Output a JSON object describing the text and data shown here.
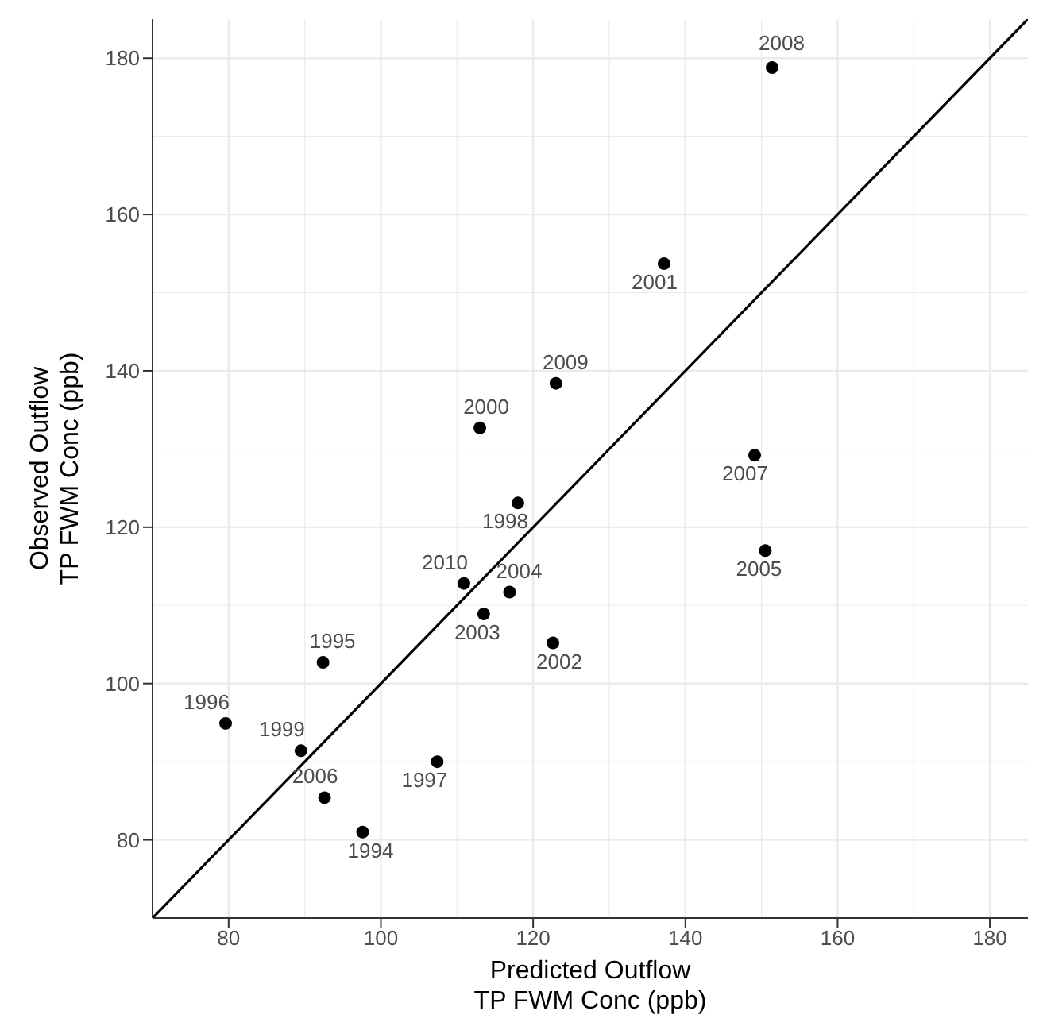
{
  "chart_data": {
    "type": "scatter",
    "xlabel": "Predicted Outflow\nTP FWM Conc (ppb)",
    "ylabel": "Observed Outflow\nTP FWM Conc (ppb)",
    "xlim": [
      70,
      185
    ],
    "ylim": [
      70,
      185
    ],
    "xticks": [
      80,
      100,
      120,
      140,
      160,
      180
    ],
    "yticks": [
      80,
      100,
      120,
      140,
      160,
      180
    ],
    "grid": true,
    "series": [
      {
        "marker": "circle",
        "color": "#000000",
        "x": [
          97.6,
          92.4,
          79.6,
          107.4,
          118.0,
          89.5,
          113.0,
          137.2,
          122.6,
          113.5,
          116.9,
          150.5,
          92.6,
          149.1,
          151.4,
          123.0,
          110.9
        ],
        "values": [
          81.0,
          102.7,
          94.9,
          90.0,
          123.1,
          91.4,
          132.7,
          153.7,
          105.2,
          108.9,
          111.7,
          117.0,
          85.4,
          129.2,
          178.8,
          138.4,
          112.8
        ]
      },
      {
        "type": "line",
        "marker": "none",
        "color": "#000000",
        "x": [
          70,
          185
        ],
        "values": [
          70,
          185
        ]
      }
    ],
    "annotations": [
      {
        "text": "1994",
        "x": 97.6,
        "y": 81.0
      },
      {
        "text": "1995",
        "x": 92.4,
        "y": 102.7
      },
      {
        "text": "1996",
        "x": 79.6,
        "y": 94.9
      },
      {
        "text": "1997",
        "x": 107.4,
        "y": 90.0
      },
      {
        "text": "1998",
        "x": 118.0,
        "y": 123.1
      },
      {
        "text": "1999",
        "x": 89.5,
        "y": 91.4
      },
      {
        "text": "2000",
        "x": 113.0,
        "y": 132.7
      },
      {
        "text": "2001",
        "x": 137.2,
        "y": 153.7
      },
      {
        "text": "2002",
        "x": 122.6,
        "y": 105.2
      },
      {
        "text": "2003",
        "x": 113.5,
        "y": 108.9
      },
      {
        "text": "2004",
        "x": 116.9,
        "y": 111.7
      },
      {
        "text": "2005",
        "x": 150.5,
        "y": 117.0
      },
      {
        "text": "2006",
        "x": 92.6,
        "y": 85.4
      },
      {
        "text": "2007",
        "x": 149.1,
        "y": 129.2
      },
      {
        "text": "2008",
        "x": 151.4,
        "y": 178.8
      },
      {
        "text": "2009",
        "x": 123.0,
        "y": 138.4
      },
      {
        "text": "2010",
        "x": 110.9,
        "y": 112.8
      }
    ]
  }
}
